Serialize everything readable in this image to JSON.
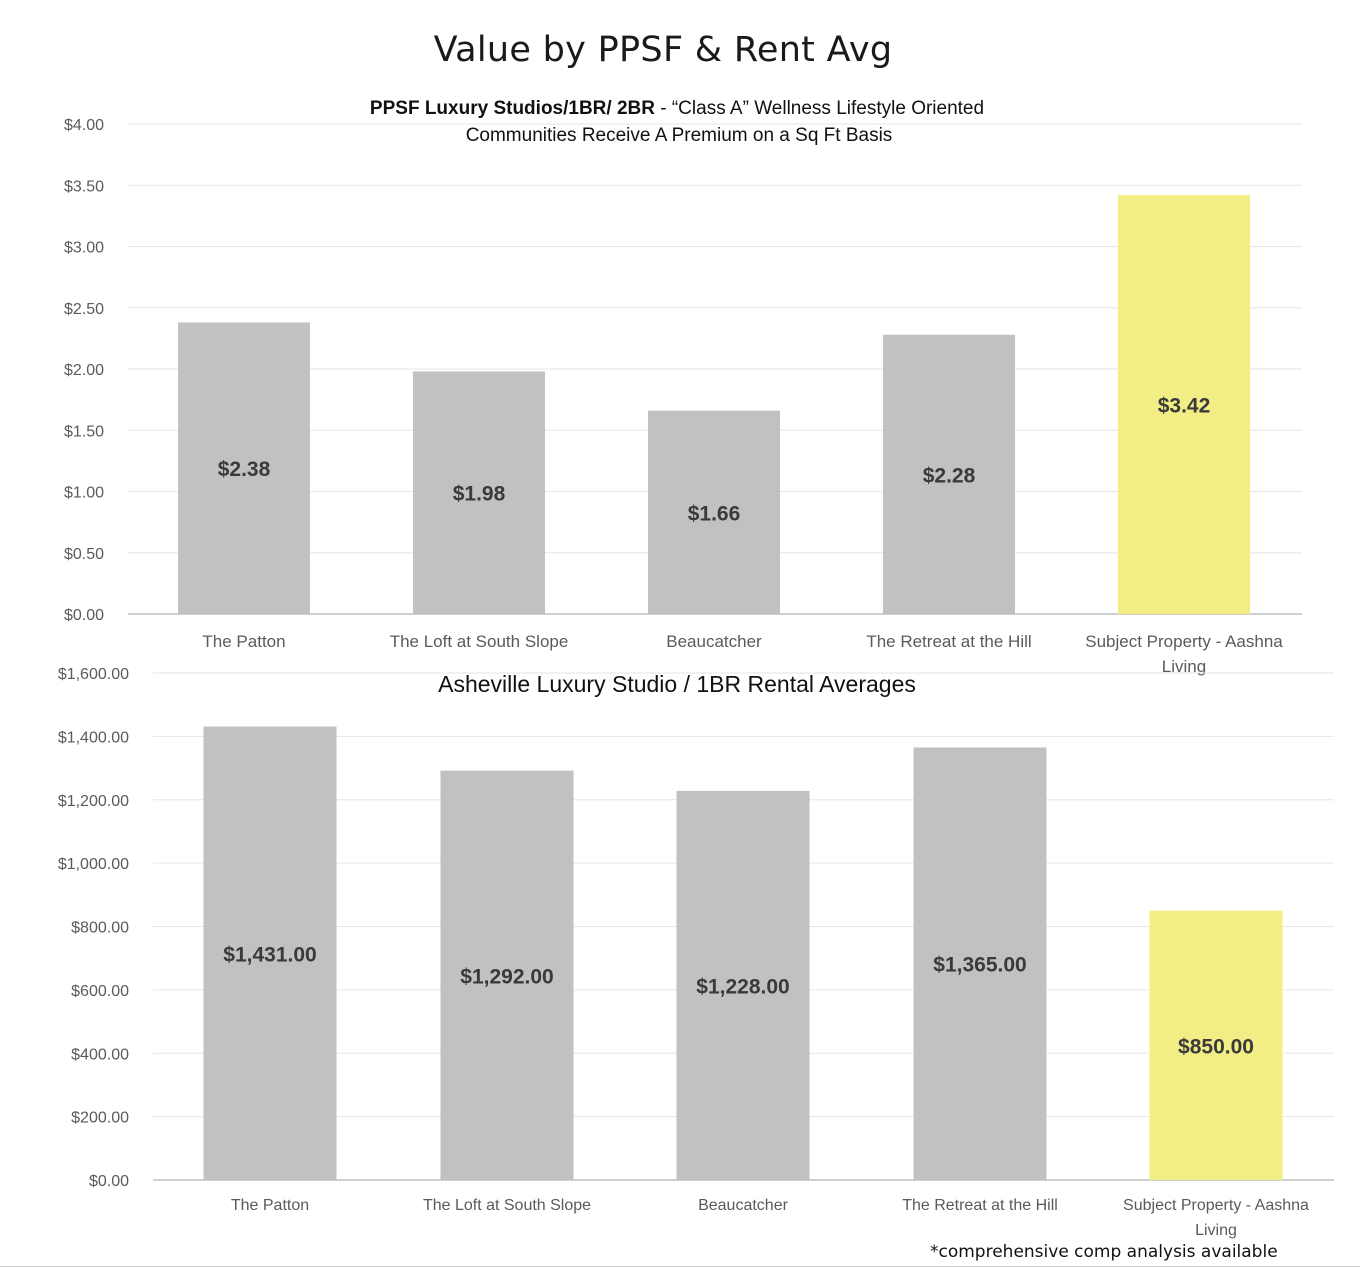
{
  "page": {
    "title": "Value by PPSF & Rent Avg",
    "footnote": "*comprehensive comp analysis available"
  },
  "colors": {
    "bar_default": "#c2c0c1",
    "bar_highlight": "#f2ee85",
    "grid": "#e6e6e6",
    "axis": "#bfbfbf",
    "tick_text": "#5a5a5a",
    "label_text": "#3a3a3a"
  },
  "chart_data": [
    {
      "type": "bar",
      "title_bold": "PPSF Luxury Studios/1BR/ 2BR",
      "title_rest": " - “Class A” Wellness Lifestyle Oriented",
      "subtitle": "Communities Receive A Premium on a Sq Ft Basis",
      "categories": [
        "The Patton",
        "The Loft at South Slope",
        "Beaucatcher",
        "The Retreat at the Hill",
        "Subject Property - Aashna Living"
      ],
      "category_lines": [
        [
          "The Patton"
        ],
        [
          "The Loft at South Slope"
        ],
        [
          "Beaucatcher"
        ],
        [
          "The Retreat at the Hill"
        ],
        [
          "Subject Property - Aashna",
          "Living"
        ]
      ],
      "values": [
        2.38,
        1.98,
        1.66,
        2.28,
        3.42
      ],
      "data_labels": [
        "$2.38",
        "$1.98",
        "$1.66",
        "$2.28",
        "$3.42"
      ],
      "highlight_index": 4,
      "ylim": [
        0,
        4
      ],
      "yticks": [
        0,
        0.5,
        1,
        1.5,
        2,
        2.5,
        3,
        3.5,
        4
      ],
      "ytick_labels": [
        "$0.00",
        "$0.50",
        "$1.00",
        "$1.50",
        "$2.00",
        "$2.50",
        "$3.00",
        "$3.50",
        "$4.00"
      ],
      "grid": true,
      "legend": "none"
    },
    {
      "type": "bar",
      "title": "Asheville Luxury Studio / 1BR Rental Averages",
      "categories": [
        "The Patton",
        "The Loft at South Slope",
        "Beaucatcher",
        "The Retreat at the Hill",
        "Subject Property - Aashna Living"
      ],
      "category_lines": [
        [
          "The Patton"
        ],
        [
          "The Loft at South Slope"
        ],
        [
          "Beaucatcher"
        ],
        [
          "The Retreat at the Hill"
        ],
        [
          "Subject Property - Aashna",
          "Living"
        ]
      ],
      "values": [
        1431,
        1292,
        1228,
        1365,
        850
      ],
      "data_labels": [
        "$1,431.00",
        "$1,292.00",
        "$1,228.00",
        "$1,365.00",
        "$850.00"
      ],
      "highlight_index": 4,
      "ylim": [
        0,
        1600
      ],
      "yticks": [
        0,
        200,
        400,
        600,
        800,
        1000,
        1200,
        1400,
        1600
      ],
      "ytick_labels": [
        "$0.00",
        "$200.00",
        "$400.00",
        "$600.00",
        "$800.00",
        "$1,000.00",
        "$1,200.00",
        "$1,400.00",
        "$1,600.00"
      ],
      "grid": true,
      "legend": "none"
    }
  ]
}
